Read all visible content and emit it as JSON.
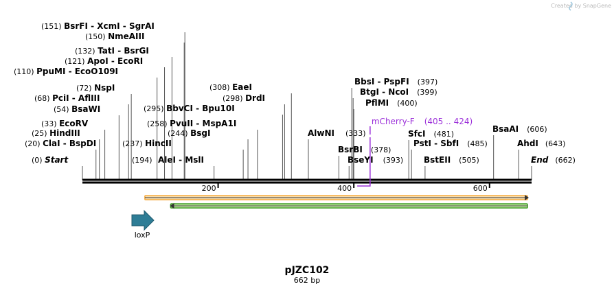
{
  "credit": "Created by SnapGene",
  "plasmid": {
    "name": "pJZC102",
    "length_label": "662 bp",
    "length": 662
  },
  "ruler": {
    "ticks": [
      200,
      400,
      600
    ]
  },
  "sites": [
    {
      "pos": 0,
      "pos_label": "(0)",
      "name": "Start",
      "italic": true
    },
    {
      "pos": 20,
      "pos_label": "(20)",
      "name": "ClaI  -  BspDI"
    },
    {
      "pos": 25,
      "pos_label": "(25)",
      "name": "HindIII"
    },
    {
      "pos": 33,
      "pos_label": "(33)",
      "name": "EcoRV"
    },
    {
      "pos": 54,
      "pos_label": "(54)",
      "name": "BsaWI"
    },
    {
      "pos": 68,
      "pos_label": "(68)",
      "name": "PciI  -  AflIII"
    },
    {
      "pos": 72,
      "pos_label": "(72)",
      "name": "NspI"
    },
    {
      "pos": 110,
      "pos_label": "(110)",
      "name": "PpuMI  -  EcoO109I"
    },
    {
      "pos": 121,
      "pos_label": "(121)",
      "name": "ApoI  -  EcoRI"
    },
    {
      "pos": 132,
      "pos_label": "(132)",
      "name": "TatI  -  BsrGI"
    },
    {
      "pos": 150,
      "pos_label": "(150)",
      "name": "NmeAIII"
    },
    {
      "pos": 151,
      "pos_label": "(151)",
      "name": "BsrFI  -  XcmI  -  SgrAI"
    },
    {
      "pos": 194,
      "pos_label": "(194)",
      "name": "AleI  -  MslI",
      "label_after": true
    },
    {
      "pos": 237,
      "pos_label": "(237)",
      "name": "HincII"
    },
    {
      "pos": 244,
      "pos_label": "(244)",
      "name": "BsgI"
    },
    {
      "pos": 258,
      "pos_label": "(258)",
      "name": "PvuII  -  MspA1I"
    },
    {
      "pos": 295,
      "pos_label": "(295)",
      "name": "BbvCI  -  Bpu10I"
    },
    {
      "pos": 298,
      "pos_label": "(298)",
      "name": "DrdI"
    },
    {
      "pos": 308,
      "pos_label": "(308)",
      "name": "EaeI"
    },
    {
      "pos": 333,
      "pos_label": "(333)",
      "name": "AlwNI"
    },
    {
      "pos": 378,
      "pos_label": "(378)",
      "name": "BsrBI"
    },
    {
      "pos": 393,
      "pos_label": "(393)",
      "name": "BseYI"
    },
    {
      "pos": 397,
      "pos_label": "(397)",
      "name": "BbsI  -  PspFI"
    },
    {
      "pos": 399,
      "pos_label": "(399)",
      "name": "BtgI  -  NcoI"
    },
    {
      "pos": 400,
      "pos_label": "(400)",
      "name": "PflMI"
    },
    {
      "pos": 481,
      "pos_label": "(481)",
      "name": "SfcI"
    },
    {
      "pos": 485,
      "pos_label": "(485)",
      "name": "PstI  -  SbfI"
    },
    {
      "pos": 505,
      "pos_label": "(505)",
      "name": "BstEII"
    },
    {
      "pos": 606,
      "pos_label": "(606)",
      "name": "BsaAI"
    },
    {
      "pos": 643,
      "pos_label": "(643)",
      "name": "AhdI"
    },
    {
      "pos": 662,
      "pos_label": "(662)",
      "name": "End",
      "italic": true
    }
  ],
  "primer": {
    "name": "mCherry-F",
    "range_label": "(405 .. 424)",
    "start": 405,
    "end": 424,
    "color": "#9b30d9"
  },
  "features": [
    {
      "id": "orange-feature",
      "start": 90,
      "end": 662,
      "direction": "forward",
      "color": "#f6a93b",
      "fill": "#fbe2b5"
    },
    {
      "id": "green-feature",
      "start": 128,
      "end": 662,
      "direction": "reverse",
      "color": "#3c9b22",
      "fill": "#c8f0a8"
    },
    {
      "id": "loxp",
      "label": "loxP",
      "direction": "forward",
      "color": "#2e7d96"
    }
  ],
  "colors": {
    "backbone": "#000000",
    "site_line": "#555555"
  }
}
